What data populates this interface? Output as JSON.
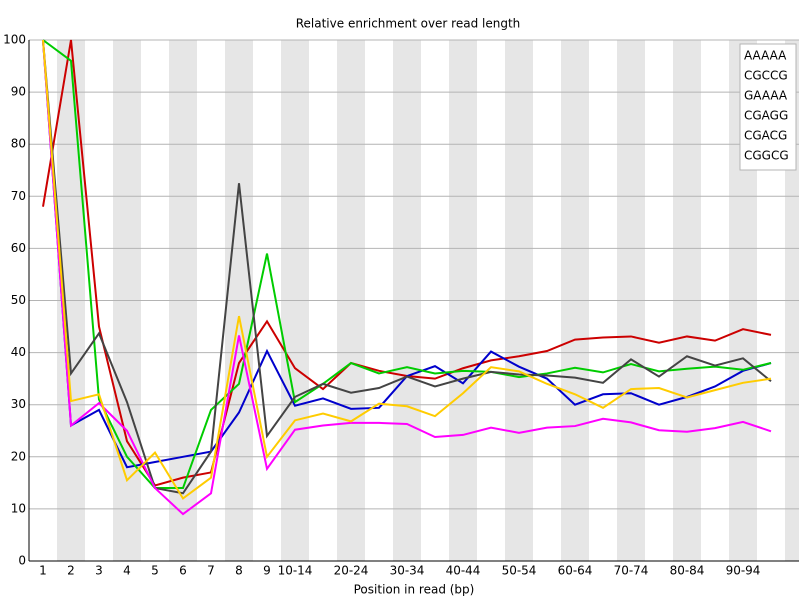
{
  "chart_data": {
    "type": "line",
    "title": "Relative enrichment over read length",
    "x_label": "Position in read (bp)",
    "categories": [
      "1",
      "2",
      "3",
      "4",
      "5",
      "6",
      "7",
      "8",
      "9",
      "10-14",
      null,
      "20-24",
      null,
      "30-34",
      null,
      "40-44",
      null,
      "50-54",
      null,
      "60-64",
      null,
      "70-74",
      null,
      "80-84",
      null,
      "90-94",
      null
    ],
    "ylim": [
      0,
      100
    ],
    "yticks": [
      0,
      10,
      20,
      30,
      40,
      50,
      60,
      70,
      80,
      90,
      100
    ],
    "grid": true,
    "legend": "top-right",
    "series": [
      {
        "name": "AAAAA",
        "color": "#cc0000",
        "values": [
          68,
          100,
          45,
          23,
          14.5,
          16,
          17,
          38,
          46,
          37,
          33,
          38,
          36.5,
          35.5,
          35,
          37,
          38.5,
          39.3,
          40.3,
          42.5,
          42.9,
          43.1,
          41.9,
          43.1,
          42.3,
          44.5,
          43.4
        ]
      },
      {
        "name": "CGCCG",
        "color": "#0000cc",
        "values": [
          100,
          26,
          29,
          18,
          19,
          20,
          21,
          28.5,
          40.3,
          29.8,
          31.2,
          29.2,
          29.4,
          35.5,
          37.4,
          34.1,
          40.2,
          37.3,
          35,
          30,
          32,
          32.2,
          30,
          31.5,
          33.5,
          36.5,
          38
        ]
      },
      {
        "name": "GAAAA",
        "color": "#00cc00",
        "values": [
          100,
          96,
          31,
          20,
          14,
          14,
          29,
          34,
          59,
          30.5,
          34,
          38,
          36,
          37.2,
          36,
          36.5,
          36.3,
          35.3,
          36,
          37.1,
          36.2,
          37.8,
          36.4,
          36.9,
          37.3,
          36.7,
          38
        ]
      },
      {
        "name": "CGAGG",
        "color": "#444444",
        "values": [
          100,
          36,
          43.7,
          30.5,
          14,
          13,
          21,
          72.5,
          24,
          31.5,
          34,
          32.3,
          33.2,
          35.4,
          33.5,
          35,
          36.3,
          35.8,
          35.6,
          35.2,
          34.2,
          38.7,
          35.4,
          39.3,
          37.5,
          38.9,
          34.5
        ]
      },
      {
        "name": "CGACG",
        "color": "#ff00ff",
        "values": [
          100,
          26,
          30.3,
          25,
          14,
          9,
          13,
          43.3,
          17.7,
          25.2,
          26,
          26.5,
          26.5,
          26.3,
          23.8,
          24.2,
          25.6,
          24.6,
          25.6,
          25.9,
          27.3,
          26.6,
          25.1,
          24.8,
          25.5,
          26.7,
          24.9
        ]
      },
      {
        "name": "CGGCG",
        "color": "#ffcc00",
        "values": [
          100,
          30.7,
          32,
          15.5,
          20.8,
          12,
          16,
          47,
          20,
          27,
          28.3,
          26.8,
          30.2,
          29.7,
          27.8,
          32.2,
          37.2,
          36.4,
          34,
          32,
          29.4,
          33,
          33.2,
          31.4,
          32.8,
          34.2,
          35
        ]
      }
    ]
  }
}
